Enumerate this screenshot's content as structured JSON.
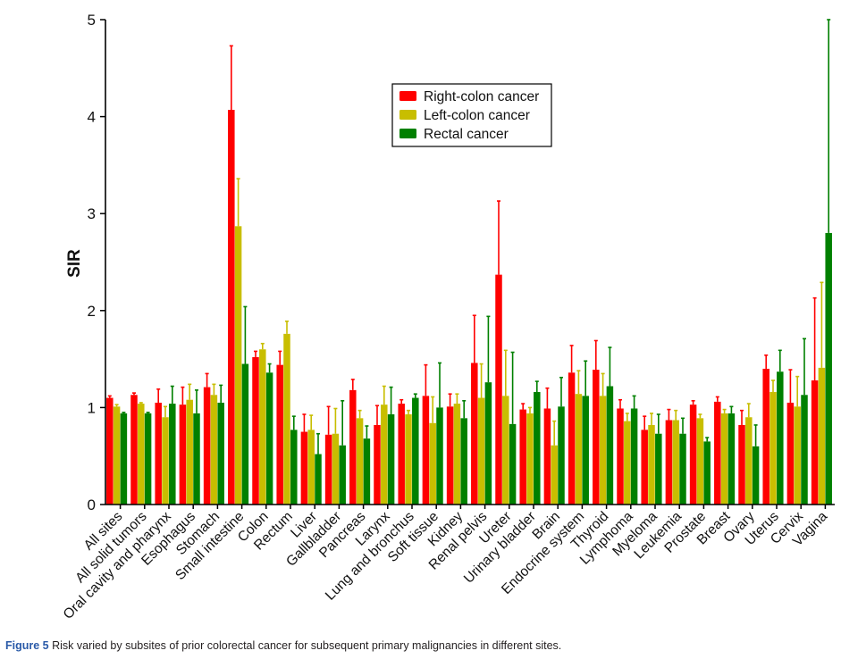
{
  "caption": {
    "figure_label": "Figure 5",
    "text": " Risk varied by subsites of prior colorectal cancer for subsequent primary malignancies in different sites."
  },
  "chart_data": {
    "type": "bar",
    "title": "",
    "xlabel": "",
    "ylabel": "SIR",
    "ylim": [
      0,
      5
    ],
    "yticks": [
      0,
      1,
      2,
      3,
      4,
      5
    ],
    "grid": false,
    "legend_position": "top-center",
    "error_bars": "upper only",
    "categories": [
      "All sites",
      "All solid tumors",
      "Oral cavity and pharynx",
      "Esophagus",
      "Stomach",
      "Small intestine",
      "Colon",
      "Rectum",
      "Liver",
      "Gallbladder",
      "Pancreas",
      "Larynx",
      "Lung and bronchus",
      "Soft tissue",
      "Kidney",
      "Renal pelvis",
      "Ureter",
      "Urinary bladder",
      "Brain",
      "Endocrine system",
      "Thyroid",
      "Lymphoma",
      "Myeloma",
      "Leukemia",
      "Prostate",
      "Breast",
      "Ovary",
      "Uterus",
      "Cervix",
      "Vagina"
    ],
    "series": [
      {
        "name": "Right-colon cancer",
        "color": "#ff0000",
        "values": [
          1.1,
          1.13,
          1.05,
          1.03,
          1.21,
          4.07,
          1.52,
          1.44,
          0.75,
          0.72,
          1.18,
          0.82,
          1.04,
          1.12,
          1.01,
          1.46,
          2.37,
          0.98,
          0.99,
          1.36,
          1.39,
          0.99,
          0.77,
          0.87,
          1.03,
          1.06,
          0.82,
          1.4,
          1.05,
          1.28
        ],
        "upper": [
          1.12,
          1.15,
          1.19,
          1.21,
          1.35,
          4.73,
          1.58,
          1.58,
          0.93,
          1.01,
          1.29,
          1.02,
          1.08,
          1.44,
          1.14,
          1.95,
          3.13,
          1.04,
          1.2,
          1.64,
          1.69,
          1.08,
          0.91,
          0.98,
          1.07,
          1.11,
          0.97,
          1.54,
          1.39,
          2.13
        ]
      },
      {
        "name": "Left-colon cancer",
        "color": "#c8be00",
        "values": [
          1.01,
          1.04,
          0.9,
          1.08,
          1.13,
          2.87,
          1.6,
          1.76,
          0.77,
          0.73,
          0.89,
          1.03,
          0.93,
          0.84,
          1.04,
          1.1,
          1.12,
          0.94,
          0.61,
          1.14,
          1.12,
          0.86,
          0.82,
          0.87,
          0.89,
          0.94,
          0.9,
          1.16,
          1.01,
          1.41
        ],
        "upper": [
          1.03,
          1.05,
          1.01,
          1.24,
          1.24,
          3.36,
          1.66,
          1.89,
          0.92,
          0.99,
          0.97,
          1.22,
          0.97,
          1.11,
          1.14,
          1.45,
          1.59,
          1.0,
          0.86,
          1.38,
          1.35,
          0.94,
          0.94,
          0.97,
          0.93,
          0.98,
          1.04,
          1.28,
          1.32,
          2.29
        ]
      },
      {
        "name": "Rectal cancer",
        "color": "#008000",
        "values": [
          0.94,
          0.94,
          1.04,
          0.94,
          1.05,
          1.45,
          1.36,
          0.77,
          0.52,
          0.61,
          0.68,
          0.93,
          1.1,
          1.0,
          0.89,
          1.26,
          0.83,
          1.16,
          1.01,
          1.12,
          1.22,
          0.99,
          0.73,
          0.73,
          0.65,
          0.94,
          0.6,
          1.37,
          1.13,
          2.8
        ],
        "upper": [
          0.95,
          0.95,
          1.22,
          1.18,
          1.23,
          2.04,
          1.45,
          0.91,
          0.73,
          1.07,
          0.81,
          1.21,
          1.14,
          1.46,
          1.07,
          1.94,
          1.57,
          1.27,
          1.31,
          1.48,
          1.62,
          1.12,
          0.93,
          0.89,
          0.69,
          1.01,
          0.82,
          1.59,
          1.71,
          5.0
        ]
      }
    ]
  }
}
